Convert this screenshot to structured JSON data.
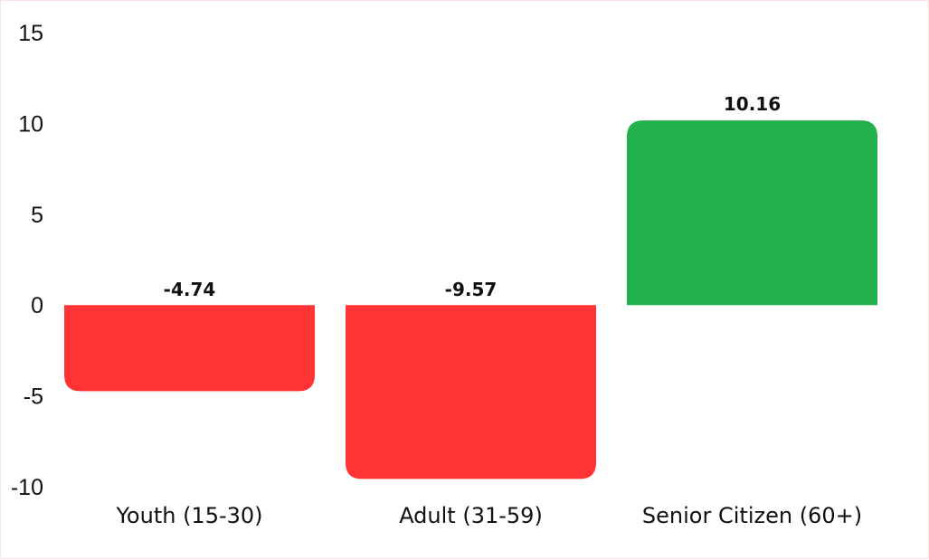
{
  "chart_data": {
    "type": "bar",
    "title": "",
    "xlabel": "",
    "ylabel": "",
    "categories": [
      "Youth (15-30)",
      "Adult (31-59)",
      "Senior Citizen (60+)"
    ],
    "values": [
      -4.74,
      -9.57,
      10.16
    ],
    "value_labels": [
      "-4.74",
      "-9.57",
      "10.16"
    ],
    "bar_colors": [
      "#ff3333",
      "#ff3333",
      "#22b14c"
    ],
    "ylim": [
      -10,
      15
    ],
    "yticks": [
      15,
      10,
      5,
      0,
      -5,
      -10
    ],
    "grid": false,
    "legend": "none"
  }
}
